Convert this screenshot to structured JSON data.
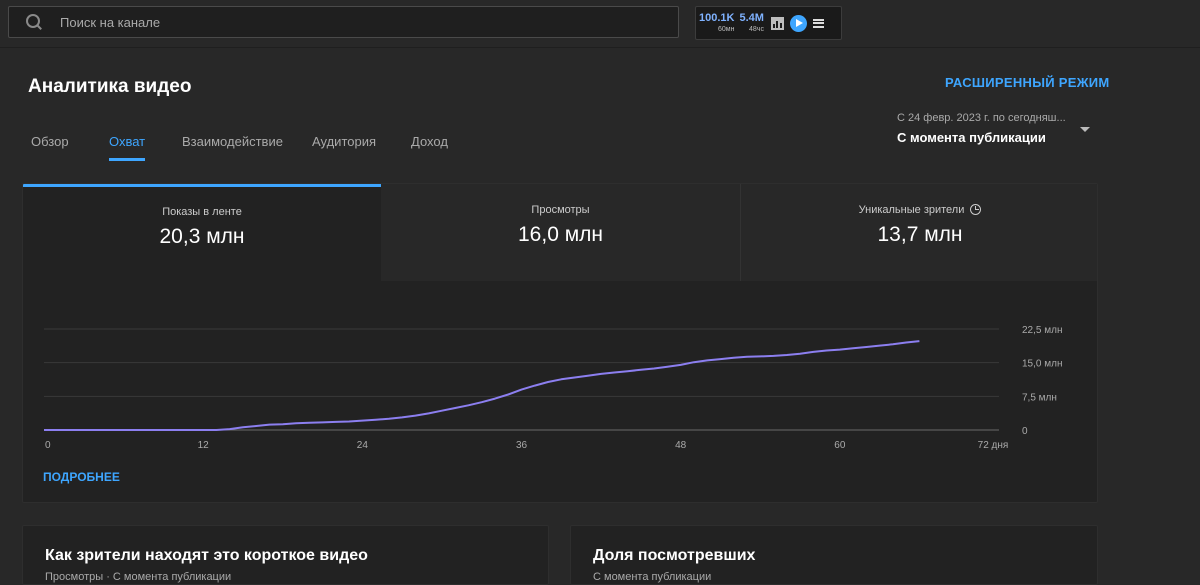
{
  "topbar": {
    "search_placeholder": "Поиск на канале",
    "stats": [
      {
        "value": "100.1K",
        "sub": "60мн"
      },
      {
        "value": "5.4M",
        "sub": "48чс"
      }
    ]
  },
  "page": {
    "title": "Аналитика видео",
    "advanced_label": "РАСШИРЕННЫЙ РЕЖИМ"
  },
  "tabs": [
    {
      "label": "Обзор"
    },
    {
      "label": "Охват"
    },
    {
      "label": "Взаимодействие"
    },
    {
      "label": "Аудитория"
    },
    {
      "label": "Доход"
    }
  ],
  "date_range": {
    "small": "С 24 февр. 2023 г. по сегодняш...",
    "selected": "С момента публикации"
  },
  "metrics": [
    {
      "label": "Показы в ленте",
      "value": "20,3 млн"
    },
    {
      "label": "Просмотры",
      "value": "16,0 млн"
    },
    {
      "label": "Уникальные зрители",
      "value": "13,7 млн"
    }
  ],
  "more_label": "ПОДРОБНЕЕ",
  "chart_data": {
    "type": "line",
    "x_ticks": [
      "0",
      "12",
      "24",
      "36",
      "48",
      "60",
      "72 дня"
    ],
    "y_ticks": [
      "0",
      "7,5 млн",
      "15,0 млн",
      "22,5 млн"
    ],
    "xlim": [
      0,
      72
    ],
    "ylim": [
      0,
      22.5
    ],
    "line_color": "#8c7ff0",
    "series": [
      {
        "x": [
          0,
          2,
          4,
          6,
          8,
          10,
          12,
          13,
          14,
          15,
          16,
          17,
          18,
          19,
          20,
          21,
          22,
          23,
          24,
          25,
          26,
          27,
          28,
          29,
          30,
          31,
          32,
          33,
          34,
          35,
          36,
          37,
          38,
          39,
          40,
          41,
          42,
          43,
          44,
          45,
          46,
          47,
          48,
          49,
          50,
          51,
          52,
          53,
          54,
          55,
          56,
          57,
          58,
          59,
          60,
          61,
          62,
          63,
          64,
          65,
          66
        ],
        "y": [
          0,
          0,
          0,
          0,
          0,
          0,
          0,
          0,
          0.2,
          0.6,
          0.9,
          1.2,
          1.3,
          1.5,
          1.6,
          1.7,
          1.8,
          1.9,
          2.1,
          2.3,
          2.5,
          2.8,
          3.2,
          3.7,
          4.3,
          4.9,
          5.5,
          6.2,
          7.0,
          7.9,
          9.0,
          9.9,
          10.7,
          11.3,
          11.7,
          12.1,
          12.5,
          12.8,
          13.1,
          13.4,
          13.7,
          14.1,
          14.5,
          15.1,
          15.5,
          15.8,
          16.1,
          16.3,
          16.4,
          16.5,
          16.7,
          17.0,
          17.4,
          17.7,
          17.9,
          18.2,
          18.5,
          18.8,
          19.1,
          19.5,
          19.8
        ]
      }
    ]
  },
  "panels": [
    {
      "title": "Как зрители находят это короткое видео",
      "sub": "Просмотры · С момента публикации"
    },
    {
      "title": "Доля посмотревших",
      "sub": "С момента публикации"
    }
  ]
}
